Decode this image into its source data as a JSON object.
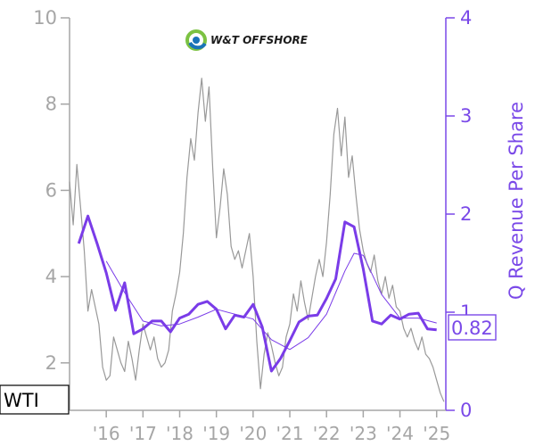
{
  "chart_data": {
    "type": "line",
    "ticker": "WTI",
    "brand": "W&T OFFSHORE",
    "ylabel_right": "Q Revenue Per Share",
    "last_value_label": "0.82",
    "left_axis": {
      "ylim": [
        0.9,
        10
      ],
      "ticks": [
        2,
        4,
        6,
        8,
        10
      ],
      "labels": [
        "2",
        "4",
        "6",
        "8",
        "10"
      ]
    },
    "right_axis": {
      "ylim": [
        0,
        4
      ],
      "ticks": [
        0,
        1,
        2,
        3,
        4
      ],
      "labels": [
        "0",
        "1",
        "2",
        "3",
        "4"
      ]
    },
    "x_axis": {
      "xlim": [
        2015.0,
        2025.25
      ],
      "ticks": [
        2016,
        2017,
        2018,
        2019,
        2020,
        2021,
        2022,
        2023,
        2024,
        2025
      ],
      "labels": [
        "'16",
        "'17",
        "'18",
        "'19",
        "'20",
        "'21",
        "'22",
        "'23",
        "'24",
        "'25"
      ]
    },
    "series": [
      {
        "axis": "left",
        "style": "price",
        "color": "#999999",
        "points": [
          [
            2015.0,
            6.2
          ],
          [
            2015.1,
            5.2
          ],
          [
            2015.2,
            6.6
          ],
          [
            2015.3,
            5.6
          ],
          [
            2015.4,
            4.6
          ],
          [
            2015.5,
            3.2
          ],
          [
            2015.6,
            3.7
          ],
          [
            2015.7,
            3.3
          ],
          [
            2015.8,
            2.9
          ],
          [
            2015.9,
            1.9
          ],
          [
            2016.0,
            1.6
          ],
          [
            2016.1,
            1.7
          ],
          [
            2016.2,
            2.6
          ],
          [
            2016.3,
            2.3
          ],
          [
            2016.4,
            2.0
          ],
          [
            2016.5,
            1.8
          ],
          [
            2016.6,
            2.5
          ],
          [
            2016.7,
            2.1
          ],
          [
            2016.8,
            1.6
          ],
          [
            2016.9,
            2.3
          ],
          [
            2017.0,
            2.9
          ],
          [
            2017.1,
            2.6
          ],
          [
            2017.2,
            2.3
          ],
          [
            2017.3,
            2.6
          ],
          [
            2017.4,
            2.1
          ],
          [
            2017.5,
            1.9
          ],
          [
            2017.6,
            2.0
          ],
          [
            2017.7,
            2.3
          ],
          [
            2017.8,
            3.2
          ],
          [
            2017.9,
            3.6
          ],
          [
            2018.0,
            4.1
          ],
          [
            2018.1,
            5.0
          ],
          [
            2018.2,
            6.3
          ],
          [
            2018.3,
            7.2
          ],
          [
            2018.4,
            6.7
          ],
          [
            2018.5,
            7.8
          ],
          [
            2018.6,
            8.6
          ],
          [
            2018.7,
            7.6
          ],
          [
            2018.8,
            8.4
          ],
          [
            2018.9,
            6.5
          ],
          [
            2019.0,
            4.9
          ],
          [
            2019.1,
            5.6
          ],
          [
            2019.2,
            6.5
          ],
          [
            2019.3,
            5.9
          ],
          [
            2019.4,
            4.7
          ],
          [
            2019.5,
            4.4
          ],
          [
            2019.6,
            4.6
          ],
          [
            2019.7,
            4.2
          ],
          [
            2019.8,
            4.6
          ],
          [
            2019.9,
            5.0
          ],
          [
            2020.0,
            4.0
          ],
          [
            2020.1,
            2.5
          ],
          [
            2020.2,
            1.4
          ],
          [
            2020.3,
            2.2
          ],
          [
            2020.4,
            2.7
          ],
          [
            2020.5,
            2.4
          ],
          [
            2020.6,
            2.0
          ],
          [
            2020.7,
            1.7
          ],
          [
            2020.8,
            1.9
          ],
          [
            2020.9,
            2.6
          ],
          [
            2021.0,
            2.9
          ],
          [
            2021.1,
            3.6
          ],
          [
            2021.2,
            3.2
          ],
          [
            2021.3,
            3.9
          ],
          [
            2021.4,
            3.4
          ],
          [
            2021.5,
            3.0
          ],
          [
            2021.6,
            3.5
          ],
          [
            2021.7,
            4.0
          ],
          [
            2021.8,
            4.4
          ],
          [
            2021.9,
            4.0
          ],
          [
            2022.0,
            4.8
          ],
          [
            2022.1,
            5.9
          ],
          [
            2022.2,
            7.3
          ],
          [
            2022.3,
            7.9
          ],
          [
            2022.4,
            6.8
          ],
          [
            2022.5,
            7.7
          ],
          [
            2022.6,
            6.3
          ],
          [
            2022.7,
            6.8
          ],
          [
            2022.8,
            5.9
          ],
          [
            2022.9,
            5.1
          ],
          [
            2023.0,
            4.6
          ],
          [
            2023.1,
            4.3
          ],
          [
            2023.2,
            4.1
          ],
          [
            2023.3,
            4.5
          ],
          [
            2023.4,
            3.9
          ],
          [
            2023.5,
            3.6
          ],
          [
            2023.6,
            4.0
          ],
          [
            2023.7,
            3.5
          ],
          [
            2023.8,
            3.8
          ],
          [
            2023.9,
            3.3
          ],
          [
            2024.0,
            3.2
          ],
          [
            2024.1,
            2.8
          ],
          [
            2024.2,
            2.6
          ],
          [
            2024.3,
            2.8
          ],
          [
            2024.4,
            2.5
          ],
          [
            2024.5,
            2.3
          ],
          [
            2024.6,
            2.6
          ],
          [
            2024.7,
            2.2
          ],
          [
            2024.8,
            2.1
          ],
          [
            2024.9,
            1.9
          ],
          [
            2025.0,
            1.6
          ],
          [
            2025.1,
            1.3
          ],
          [
            2025.2,
            1.1
          ]
        ]
      },
      {
        "axis": "right",
        "style": "revenue",
        "color": "#7a3ce8",
        "points": [
          [
            2015.25,
            1.7
          ],
          [
            2015.5,
            1.98
          ],
          [
            2015.75,
            1.7
          ],
          [
            2016.0,
            1.4
          ],
          [
            2016.25,
            1.02
          ],
          [
            2016.5,
            1.3
          ],
          [
            2016.75,
            0.78
          ],
          [
            2017.0,
            0.83
          ],
          [
            2017.25,
            0.91
          ],
          [
            2017.5,
            0.91
          ],
          [
            2017.75,
            0.8
          ],
          [
            2018.0,
            0.94
          ],
          [
            2018.25,
            0.98
          ],
          [
            2018.5,
            1.08
          ],
          [
            2018.75,
            1.11
          ],
          [
            2019.0,
            1.03
          ],
          [
            2019.25,
            0.83
          ],
          [
            2019.5,
            0.97
          ],
          [
            2019.75,
            0.95
          ],
          [
            2020.0,
            1.08
          ],
          [
            2020.25,
            0.85
          ],
          [
            2020.5,
            0.4
          ],
          [
            2020.75,
            0.53
          ],
          [
            2021.0,
            0.71
          ],
          [
            2021.25,
            0.9
          ],
          [
            2021.5,
            0.96
          ],
          [
            2021.75,
            0.97
          ],
          [
            2022.0,
            1.14
          ],
          [
            2022.25,
            1.34
          ],
          [
            2022.5,
            1.92
          ],
          [
            2022.75,
            1.87
          ],
          [
            2023.0,
            1.44
          ],
          [
            2023.25,
            0.91
          ],
          [
            2023.5,
            0.88
          ],
          [
            2023.75,
            0.97
          ],
          [
            2024.0,
            0.93
          ],
          [
            2024.25,
            0.98
          ],
          [
            2024.5,
            0.99
          ],
          [
            2024.75,
            0.83
          ],
          [
            2025.0,
            0.82
          ]
        ]
      },
      {
        "axis": "right",
        "style": "revenue-average",
        "color": "#7a3ce8",
        "points": [
          [
            2016.0,
            1.52
          ],
          [
            2016.5,
            1.2
          ],
          [
            2017.0,
            0.91
          ],
          [
            2017.5,
            0.86
          ],
          [
            2018.0,
            0.88
          ],
          [
            2018.5,
            0.95
          ],
          [
            2019.0,
            1.03
          ],
          [
            2019.5,
            0.98
          ],
          [
            2020.0,
            0.93
          ],
          [
            2020.5,
            0.72
          ],
          [
            2021.0,
            0.62
          ],
          [
            2021.5,
            0.74
          ],
          [
            2022.0,
            0.98
          ],
          [
            2022.5,
            1.42
          ],
          [
            2022.75,
            1.6
          ],
          [
            2023.0,
            1.58
          ],
          [
            2023.5,
            1.18
          ],
          [
            2024.0,
            0.94
          ],
          [
            2024.5,
            0.94
          ],
          [
            2025.0,
            0.89
          ]
        ]
      }
    ],
    "grid": false
  }
}
